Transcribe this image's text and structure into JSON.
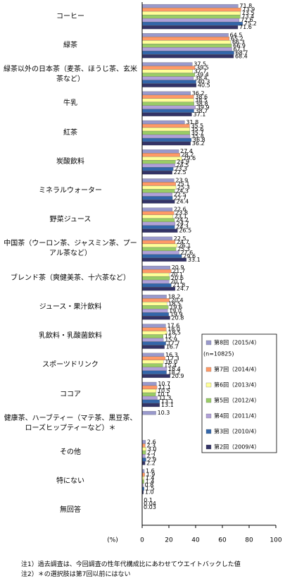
{
  "chart_data": {
    "type": "bar",
    "orientation": "horizontal",
    "categories": [
      "コーヒー",
      "緑茶",
      "緑茶以外の日本茶（麦茶、ほうじ茶、玄米茶など）",
      "牛乳",
      "紅茶",
      "炭酸飲料",
      "ミネラルウォーター",
      "野菜ジュース",
      "中国茶（ウーロン茶、ジャスミン茶、プーアル茶など）",
      "ブレンド茶（爽健美茶、十六茶など）",
      "ジュース・果汁飲料",
      "乳飲料・乳酸菌飲料",
      "スポーツドリンク",
      "ココア",
      "健康茶、ハーブティー（マテ茶、黒豆茶、ローズヒップティーなど）＊",
      "その他",
      "特にない",
      "無回答"
    ],
    "series": [
      {
        "name": "第8回（2015/4）",
        "color": "#9999cc",
        "values": [
          71.8,
          64.5,
          37.5,
          36.2,
          31.8,
          27.4,
          23.9,
          22.6,
          22.5,
          20.9,
          18.2,
          17.6,
          16.3,
          10.7,
          10.3,
          2.6,
          1.6,
          0.1
        ],
        "value_labels": [
          "71.8",
          "64.5",
          "37.5",
          "36.2",
          "31.8",
          "27.4",
          "23.9",
          "22.6",
          "22.5",
          "20.9",
          "18.2",
          "17.6",
          "16.3",
          "10.7",
          "10.3",
          "2.6",
          "1.6",
          "0.1"
        ]
      },
      {
        "name": "第7回（2014/4）",
        "color": "#ff9966",
        "values": [
          73.9,
          65.2,
          39.5,
          38.6,
          35.5,
          28.2,
          25.1,
          23.8,
          24.7,
          21.7,
          20.4,
          18.0,
          17.3,
          11.1,
          null,
          2.3,
          1.9,
          0.04
        ],
        "value_labels": [
          "73.9",
          "65.2",
          "39.5",
          "38.6",
          "35.5",
          "28.2",
          "25.1",
          "23.8",
          "24.7",
          "21.7",
          "20.4",
          "18.0",
          "17.3",
          "11.1",
          null,
          "2.3",
          "1.9",
          "0.04"
        ]
      },
      {
        "name": "第6回（2013/4）",
        "color": "#ffff99",
        "values": [
          73.5,
          66.3,
          37.7,
          38.5,
          35.6,
          29.6,
          25.3,
          23.1,
          26.1,
          20.1,
          18.5,
          18.5,
          16.0,
          10.5,
          null,
          3.0,
          1.4,
          0.03
        ],
        "value_labels": [
          "73.5",
          "66.3",
          "37.7",
          "38.5",
          "35.6",
          "29.6",
          "25.3",
          "23.1",
          "26.1",
          "20.1",
          "18.5",
          "18.5",
          "16.0",
          "10.5",
          null,
          "3.0",
          "1.4",
          "0.03"
        ]
      },
      {
        "name": "第5回（2012/4）",
        "color": "#99cc66",
        "values": [
          73.4,
          66.9,
          39.4,
          38.8,
          35.7,
          24.9,
          24.3,
          24.2,
          25.3,
          20.6,
          19.6,
          15.7,
          15.4,
          10.1,
          null,
          2.7,
          1.4,
          null
        ],
        "value_labels": [
          "73.4",
          "66.9",
          "39.4",
          "38.8",
          "35.7",
          "24.9",
          "24.3",
          "24.2",
          "25.3",
          "20.6",
          "19.6",
          "15.7",
          "15.4",
          "10.1",
          null,
          "2.7",
          "1.4",
          null
        ]
      },
      {
        "name": "第4回（2011/4）",
        "color": "#b0a0d8",
        "values": [
          72.6,
          67.1,
          38.4,
          39.9,
          35.8,
          24.5,
          22.5,
          24.7,
          27.6,
          20.1,
          19.0,
          15.9,
          18.4,
          11.3,
          null,
          2.2,
          0.8,
          null
        ],
        "value_labels": [
          "72.6",
          "67.1",
          "38.4",
          "39.9",
          "35.8",
          "24.5",
          "22.5",
          "24.7",
          "27.6",
          "20.1",
          "19.0",
          "15.9",
          "18.4",
          "11.3",
          null,
          "2.2",
          "0.8",
          null
        ]
      },
      {
        "name": "第3回（2010/4）",
        "color": "#3366aa",
        "values": [
          75.2,
          68.7,
          40.3,
          38.7,
          36.8,
          23.3,
          22.7,
          24.3,
          29.6,
          21.8,
          19.9,
          17.7,
          18.2,
          13.1,
          null,
          2.9,
          1.5,
          null
        ],
        "value_labels": [
          "75.2",
          "68.7",
          "40.3",
          "38.7",
          "36.8",
          "23.3",
          "22.7",
          "24.3",
          "29.6",
          "21.8",
          "19.9",
          "17.7",
          "18.2",
          "13.1",
          null,
          "2.9",
          "1.5",
          null
        ]
      },
      {
        "name": "第2回（2009/4）",
        "color": "#333366",
        "values": [
          71.6,
          68.4,
          40.5,
          37.1,
          36.2,
          22.5,
          24.4,
          26.5,
          33.1,
          24.7,
          20.8,
          16.7,
          20.9,
          13.1,
          null,
          2.2,
          1.0,
          null
        ],
        "value_labels": [
          "71.6",
          "68.4",
          "40.5",
          "37.1",
          "36.2",
          "22.5",
          "24.4",
          "26.5",
          "33.1",
          "24.7",
          "20.8",
          "16.7",
          "20.9",
          "13.1",
          null,
          "2.2",
          "1.0",
          null
        ]
      }
    ],
    "legend_note": "(n=10825)",
    "x_unit": "(%)",
    "xlim": [
      0,
      100
    ],
    "xticks": [
      0,
      20,
      40,
      60,
      80,
      100
    ],
    "notes": [
      "注1）過去調査は、今回調査の性年代構成比にあわせてウエイトバックした値",
      "注2）＊の選択肢は第7回以前にはない"
    ]
  }
}
